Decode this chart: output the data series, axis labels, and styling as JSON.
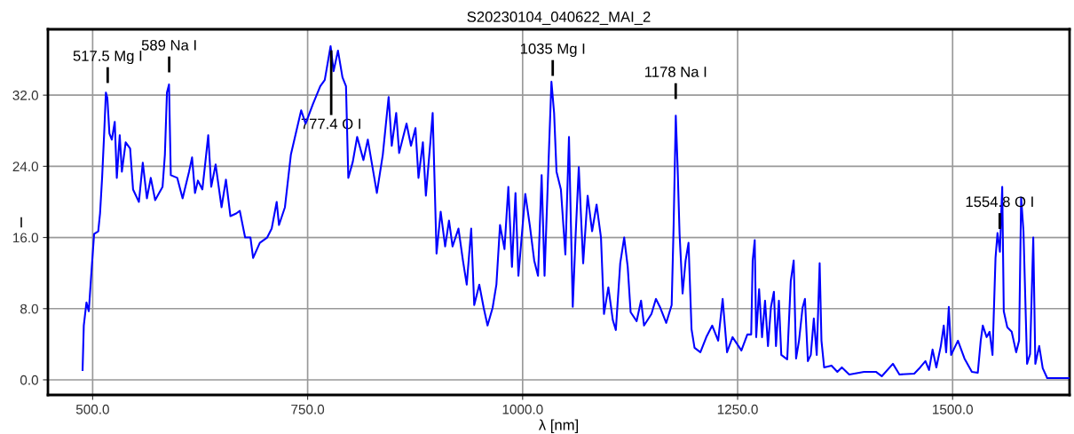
{
  "chart_data": {
    "type": "line",
    "title": "S20230104_040622_MAI_2",
    "xlabel": "λ [nm]",
    "ylabel": "I",
    "xlim": [
      448,
      1636
    ],
    "ylim": [
      -1.7,
      39.4
    ],
    "xticks": [
      {
        "value": 500,
        "label": "500.0"
      },
      {
        "value": 750,
        "label": "750.0"
      },
      {
        "value": 1000,
        "label": "1000.0"
      },
      {
        "value": 1250,
        "label": "1250.0"
      },
      {
        "value": 1500,
        "label": "1500.0"
      }
    ],
    "yticks": [
      {
        "value": 0,
        "label": "0.0"
      },
      {
        "value": 8,
        "label": "8.0"
      },
      {
        "value": 16,
        "label": "16.0"
      },
      {
        "value": 24,
        "label": "24.0"
      },
      {
        "value": 32,
        "label": "32.0"
      }
    ],
    "grid": true,
    "marker": "none",
    "line_style": "solid",
    "annotations": [
      {
        "text": "517.5 Mg I",
        "x": 517.5,
        "y": 31.0
      },
      {
        "text": "589 Na I",
        "x": 589,
        "y": 32.2
      },
      {
        "text": "777.4 O I",
        "x": 777.4,
        "y": 36.9
      },
      {
        "text": "1035 Mg I",
        "x": 1035,
        "y": 31.8
      },
      {
        "text": "1178 Na I",
        "x": 1178,
        "y": 29.2
      },
      {
        "text": "1554.8 O I",
        "x": 1554.8,
        "y": 14.6
      }
    ],
    "series": [
      {
        "color": "#0000ff",
        "x": [
          488.3,
          489.7,
          492.8,
          495.5,
          499,
          501.7,
          506.5,
          508.6,
          511,
          513.4,
          515.4,
          517.1,
          519.5,
          522.3,
          525.7,
          528.1,
          531.5,
          534,
          538.4,
          543.6,
          547,
          553.8,
          558.3,
          563.1,
          567.6,
          572.7,
          581.3,
          584,
          586.4,
          588.8,
          590.9,
          598.4,
          604.6,
          612.1,
          615.6,
          619,
          622.4,
          627.6,
          631,
          634.4,
          637.9,
          643,
          649.9,
          655,
          660.2,
          667,
          671.1,
          677.3,
          683.5,
          686.6,
          694.4,
          703,
          708.2,
          714,
          716.7,
          723.6,
          730.5,
          742.5,
          747.6,
          756.2,
          764.7,
          769.9,
          776.7,
          780.2,
          785.3,
          790.5,
          794.6,
          797.3,
          802.5,
          807.6,
          814.9,
          820,
          830.5,
          837.4,
          844.2,
          847.8,
          853,
          856.4,
          865,
          870.2,
          875.4,
          878.9,
          884,
          887.5,
          892.7,
          895.4,
          897.8,
          899.9,
          904.7,
          909.9,
          914.4,
          918.5,
          925.4,
          930.6,
          935,
          940.2,
          943.7,
          949.6,
          954.7,
          959.2,
          965.1,
          969.5,
          973.7,
          978.9,
          983.4,
          987.6,
          991.7,
          995.1,
          1003.1,
          1008.3,
          1013.5,
          1017.9,
          1022.1,
          1025.5,
          1030.7,
          1033.5,
          1036.6,
          1039.4,
          1044.5,
          1049.7,
          1053.9,
          1058.3,
          1061.7,
          1065.3,
          1070.4,
          1075.6,
          1080.8,
          1086,
          1091.1,
          1094.6,
          1099.7,
          1104.9,
          1108.4,
          1113.5,
          1118.1,
          1122.2,
          1125.6,
          1132.6,
          1137.7,
          1141.2,
          1149.8,
          1155,
          1160.1,
          1167,
          1173.3,
          1175.6,
          1178.1,
          1180.2,
          1182.5,
          1186,
          1189.5,
          1192.9,
          1196.4,
          1199.9,
          1206.7,
          1213.6,
          1220.5,
          1227.4,
          1232.6,
          1237.7,
          1244.1,
          1254.4,
          1261.3,
          1265.8,
          1267.5,
          1269.9,
          1271.6,
          1275,
          1278.4,
          1281.9,
          1285.3,
          1288.8,
          1292.2,
          1294.6,
          1298,
          1300.8,
          1307.7,
          1311.8,
          1315.2,
          1318,
          1321.4,
          1325.5,
          1328.3,
          1331.7,
          1335.1,
          1338.6,
          1342,
          1345.4,
          1347.5,
          1350.6,
          1359.2,
          1366,
          1371.2,
          1379.8,
          1397,
          1410.8,
          1417.6,
          1430.6,
          1438.2,
          1455.4,
          1462.3,
          1468.4,
          1472.6,
          1476.7,
          1481.1,
          1486.3,
          1489.7,
          1492.5,
          1495.6,
          1498.3,
          1506.2,
          1513.8,
          1522.4,
          1529.3,
          1532.7,
          1535.1,
          1539.6,
          1543,
          1546.4,
          1549.9,
          1552.2,
          1555,
          1557.7,
          1559.5,
          1563.6,
          1568.7,
          1573.9,
          1577.3,
          1579.7,
          1582.4,
          1586.6,
          1590.1,
          1593.8,
          1596.2,
          1600.7,
          1604.8,
          1610,
          1635.7
        ],
        "values": [
          1.1,
          6.1,
          8.7,
          7.7,
          12.7,
          16.4,
          16.7,
          18.7,
          22.7,
          27.7,
          32.3,
          31.7,
          27.7,
          27.0,
          29.0,
          22.7,
          27.5,
          23.4,
          26.7,
          26.0,
          21.4,
          20.0,
          24.4,
          20.4,
          22.7,
          20.2,
          21.7,
          25.3,
          32.3,
          33.2,
          23.0,
          22.7,
          20.4,
          23.4,
          25.0,
          21.0,
          22.4,
          21.4,
          24.4,
          27.5,
          21.7,
          24.2,
          19.4,
          22.5,
          18.4,
          18.7,
          19.0,
          16.0,
          16.0,
          13.7,
          15.4,
          16.0,
          17.0,
          20.0,
          17.4,
          19.4,
          25.3,
          30.3,
          28.8,
          31.0,
          33.0,
          33.7,
          37.5,
          34.7,
          37.0,
          34.0,
          33.0,
          22.7,
          24.5,
          27.3,
          24.7,
          27.0,
          21.0,
          25.3,
          31.8,
          26.3,
          30.0,
          25.5,
          28.8,
          26.3,
          28.3,
          22.7,
          26.7,
          20.7,
          26.7,
          30.0,
          21.7,
          14.2,
          18.9,
          15.0,
          17.9,
          15.0,
          17.0,
          13.4,
          10.7,
          17.0,
          8.4,
          10.7,
          8.1,
          6.1,
          8.1,
          10.7,
          17.4,
          14.7,
          21.7,
          12.7,
          21.0,
          11.7,
          20.9,
          17.4,
          13.4,
          11.7,
          23.0,
          11.7,
          26.0,
          33.5,
          30.0,
          23.4,
          21.4,
          14.1,
          27.3,
          8.2,
          16.4,
          23.9,
          13.1,
          20.7,
          16.7,
          19.7,
          16.0,
          7.4,
          10.4,
          6.7,
          5.6,
          13.1,
          16.0,
          12.7,
          7.6,
          6.6,
          8.9,
          6.1,
          7.4,
          9.1,
          8.1,
          6.4,
          8.4,
          17.4,
          29.7,
          24.0,
          16.4,
          9.7,
          13.4,
          15.4,
          5.7,
          3.6,
          3.1,
          4.8,
          6.1,
          4.4,
          9.1,
          3.1,
          4.8,
          3.3,
          5.1,
          5.1,
          13.4,
          15.7,
          4.8,
          10.2,
          4.8,
          8.9,
          3.8,
          8.2,
          9.9,
          3.8,
          8.9,
          2.8,
          2.3,
          11.1,
          13.4,
          2.4,
          4.4,
          8.1,
          9.1,
          2.1,
          2.8,
          6.9,
          2.8,
          13.1,
          4.4,
          1.4,
          1.6,
          0.9,
          1.4,
          0.6,
          0.9,
          0.9,
          0.4,
          1.8,
          0.6,
          0.7,
          1.4,
          2.1,
          1.1,
          3.4,
          1.4,
          3.8,
          6.1,
          3.1,
          8.2,
          2.8,
          4.4,
          2.4,
          0.9,
          0.8,
          4.4,
          6.1,
          4.8,
          5.4,
          2.8,
          13.7,
          16.5,
          14.4,
          21.7,
          7.7,
          5.9,
          5.4,
          3.1,
          4.4,
          20.5,
          16.7,
          1.8,
          2.9,
          16.0,
          1.8,
          3.8,
          1.3,
          0.2,
          0.2
        ]
      }
    ]
  }
}
